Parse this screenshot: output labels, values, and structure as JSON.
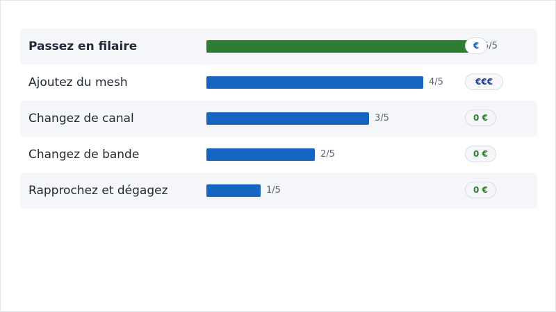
{
  "rows": [
    {
      "label": "Passez en filaire",
      "score": 5,
      "max": 5,
      "score_text": "5/5",
      "badge": "€",
      "badge_color": "#1565c0",
      "bar_color": "#2e7d32"
    },
    {
      "label": "Ajoutez du mesh",
      "score": 4,
      "max": 5,
      "score_text": "4/5",
      "badge": "€€€",
      "badge_color": "#1a3f8f",
      "bar_color": "#1565c0"
    },
    {
      "label": "Changez de canal",
      "score": 3,
      "max": 5,
      "score_text": "3/5",
      "badge": "0 €",
      "badge_color": "#2e7d32",
      "bar_color": "#1565c0"
    },
    {
      "label": "Changez de bande",
      "score": 2,
      "max": 5,
      "score_text": "2/5",
      "badge": "0 €",
      "badge_color": "#2e7d32",
      "bar_color": "#1565c0"
    },
    {
      "label": "Rapprochez et dégagez",
      "score": 1,
      "max": 5,
      "score_text": "1/5",
      "badge": "0 €",
      "badge_color": "#2e7d32",
      "bar_color": "#1565c0"
    }
  ]
}
